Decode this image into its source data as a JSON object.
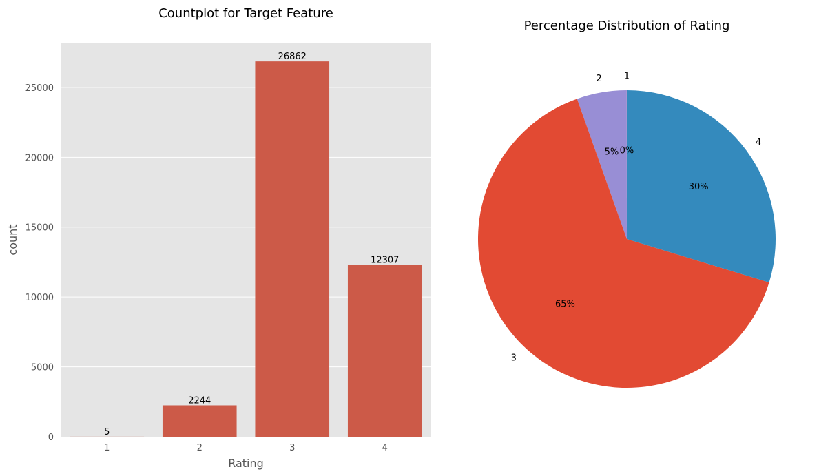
{
  "chart_data": [
    {
      "type": "bar",
      "title": "Countplot for Target Feature",
      "xlabel": "Rating",
      "ylabel": "count",
      "categories": [
        "1",
        "2",
        "3",
        "4"
      ],
      "values": [
        5,
        2244,
        26862,
        12307
      ],
      "data_labels": [
        "5",
        "2244",
        "26862",
        "12307"
      ],
      "ylim": [
        0,
        28200
      ],
      "yticks": [
        0,
        5000,
        10000,
        15000,
        20000,
        25000
      ],
      "ytick_labels": [
        "0",
        "5000",
        "10000",
        "15000",
        "20000",
        "25000"
      ],
      "grid": true,
      "bar_color": "#cc5a48",
      "background": "#e5e5e5"
    },
    {
      "type": "pie",
      "title": "Percentage Distribution of Rating",
      "labels": [
        "1",
        "2",
        "3",
        "4"
      ],
      "values": [
        5,
        2244,
        26862,
        12307
      ],
      "autopct_labels": [
        "0%",
        "5%",
        "65%",
        "30%"
      ],
      "start_angle": 90,
      "direction": "counterclockwise",
      "colors": [
        "#e24a33",
        "#988ed5",
        "#e24a33",
        "#348abd"
      ]
    }
  ]
}
